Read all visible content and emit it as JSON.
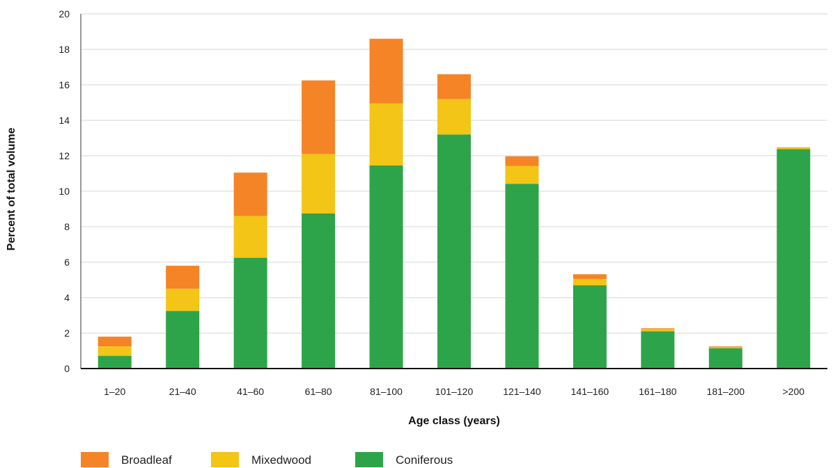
{
  "chart_data": {
    "type": "bar",
    "stacked": true,
    "title": "",
    "xlabel": "Age class (years)",
    "ylabel": "Percent of total volume",
    "ylim": [
      0,
      20
    ],
    "yticks": [
      0,
      2,
      4,
      6,
      8,
      10,
      12,
      14,
      16,
      18,
      20
    ],
    "grid": true,
    "legend_position": "bottom-left",
    "categories": [
      "1–20",
      "21–40",
      "41–60",
      "61–80",
      "81–100",
      "101–120",
      "121–140",
      "141–160",
      "161–180",
      "181–200",
      ">200"
    ],
    "series": [
      {
        "name": "Coniferous",
        "color": "#2ea44a",
        "values": [
          0.72,
          3.25,
          6.25,
          8.75,
          11.45,
          13.2,
          10.42,
          4.7,
          2.1,
          1.15,
          12.38
        ]
      },
      {
        "name": "Mixedwood",
        "color": "#f2c517",
        "values": [
          0.53,
          1.25,
          2.35,
          3.35,
          3.5,
          2.0,
          1.0,
          0.35,
          0.12,
          0.05,
          0.08
        ]
      },
      {
        "name": "Broadleaf",
        "color": "#f58426",
        "values": [
          0.55,
          1.3,
          2.45,
          4.15,
          3.65,
          1.4,
          0.55,
          0.27,
          0.05,
          0.05,
          0.02
        ]
      }
    ],
    "legend_order": [
      "Broadleaf",
      "Mixedwood",
      "Coniferous"
    ]
  }
}
